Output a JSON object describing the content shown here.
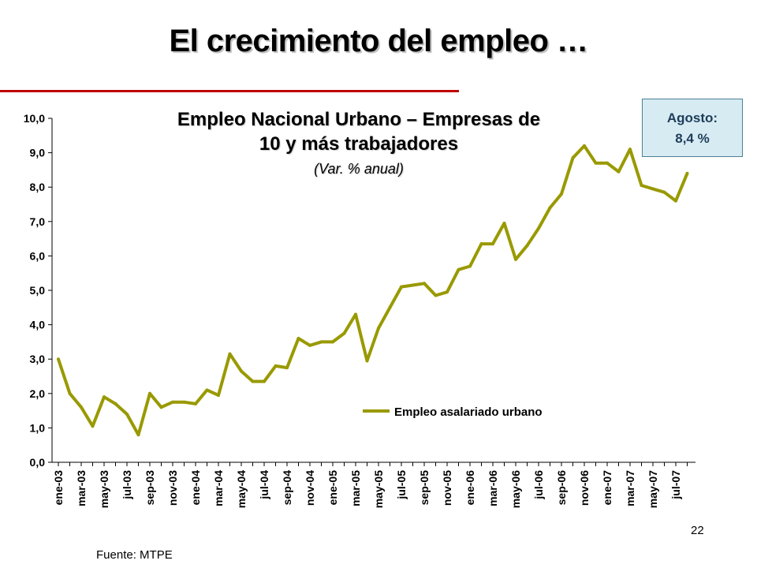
{
  "slide": {
    "title": "El crecimiento del empleo …",
    "page_number": "22",
    "source": "Fuente: MTPE",
    "accent_color": "#c00000"
  },
  "callout": {
    "line1": "Agosto:",
    "line2": "8,4 %"
  },
  "chart_data": {
    "type": "line",
    "title_line1": "Empleo Nacional Urbano – Empresas de",
    "title_line2": "10 y más trabajadores",
    "subtitle": "(Var. % anual)",
    "xlabel": "",
    "ylabel": "",
    "ylim": [
      0,
      10
    ],
    "y_ticks": [
      "0,0",
      "1,0",
      "2,0",
      "3,0",
      "4,0",
      "5,0",
      "6,0",
      "7,0",
      "8,0",
      "9,0",
      "10,0"
    ],
    "x_tick_labels": [
      "ene-03",
      "mar-03",
      "may-03",
      "jul-03",
      "sep-03",
      "nov-03",
      "ene-04",
      "mar-04",
      "may-04",
      "jul-04",
      "sep-04",
      "nov-04",
      "ene-05",
      "mar-05",
      "may-05",
      "jul-05",
      "sep-05",
      "nov-05",
      "ene-06",
      "mar-06",
      "may-06",
      "jul-06",
      "sep-06",
      "nov-06",
      "ene-07",
      "mar-07",
      "may-07",
      "jul-07"
    ],
    "grid": false,
    "legend_position": "lower-right",
    "series": [
      {
        "name": "Empleo asalariado urbano",
        "color": "#999900",
        "values": [
          3.0,
          2.0,
          1.6,
          1.05,
          1.9,
          1.7,
          1.4,
          0.8,
          2.0,
          1.6,
          1.75,
          1.75,
          1.7,
          2.1,
          1.95,
          3.15,
          2.65,
          2.35,
          2.35,
          2.8,
          2.75,
          3.6,
          3.4,
          3.5,
          3.5,
          3.75,
          4.3,
          2.95,
          3.9,
          4.5,
          5.1,
          5.15,
          5.2,
          4.85,
          4.95,
          5.6,
          5.7,
          6.35,
          6.35,
          6.95,
          5.9,
          6.3,
          6.8,
          7.4,
          7.8,
          8.85,
          9.2,
          8.7,
          8.7,
          8.45,
          9.1,
          8.05,
          7.95,
          7.85,
          7.6,
          8.4
        ]
      }
    ]
  }
}
